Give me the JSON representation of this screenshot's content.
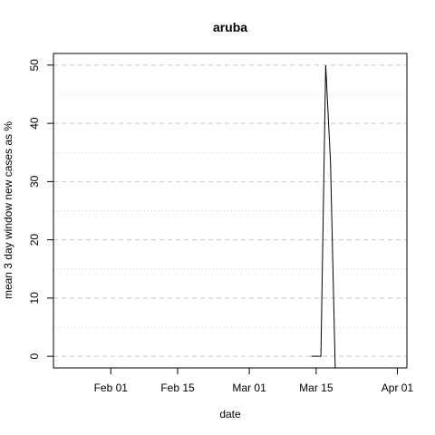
{
  "chart_data": {
    "type": "line",
    "title": "aruba",
    "xlabel": "date",
    "ylabel": "mean  3  day window new cases as %",
    "x_ticks": [
      "2020-02-01",
      "2020-02-15",
      "2020-03-01",
      "2020-03-15",
      "2020-04-01"
    ],
    "x_tick_labels": [
      "Feb 01",
      "Feb 15",
      "Mar 01",
      "Mar 15",
      "Apr 01"
    ],
    "xlim": [
      "2020-01-20",
      "2020-04-03"
    ],
    "y_ticks": [
      0,
      10,
      20,
      30,
      40,
      50
    ],
    "y_tick_labels": [
      "0",
      "10",
      "20",
      "30",
      "40",
      "50"
    ],
    "ylim": [
      -2,
      52
    ],
    "grid": true,
    "series": [
      {
        "x": [
          "2020-03-14",
          "2020-03-15",
          "2020-03-16",
          "2020-03-17",
          "2020-03-18",
          "2020-03-19"
        ],
        "values": [
          0,
          0,
          0,
          50,
          33.3,
          -2
        ]
      }
    ]
  }
}
